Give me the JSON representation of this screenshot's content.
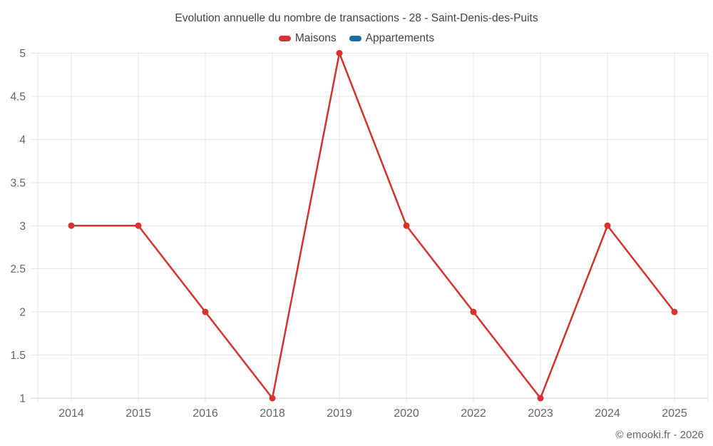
{
  "chart_data": {
    "type": "line",
    "title": "Evolution annuelle du nombre de transactions - 28 - Saint-Denis-des-Puits",
    "xlabel": "",
    "ylabel": "",
    "categories": [
      "2014",
      "2015",
      "2016",
      "2018",
      "2019",
      "2020",
      "2022",
      "2023",
      "2024",
      "2025"
    ],
    "series": [
      {
        "name": "Maisons",
        "color": "#d8312e",
        "values": [
          3,
          3,
          2,
          1,
          5,
          3,
          2,
          1,
          3,
          2
        ]
      },
      {
        "name": "Appartements",
        "color": "#1a6da0",
        "values": []
      }
    ],
    "ylim": [
      1,
      5
    ],
    "y_ticks": [
      5,
      4.5,
      4,
      3.5,
      3,
      2.5,
      2,
      1.5,
      1
    ],
    "grid": true,
    "legend_position": "top"
  },
  "colors": {
    "maisons": "#d8312e",
    "appartements": "#1a6da0",
    "grid": "#e6e6e6",
    "axis": "#cccccc",
    "axis_label": "#666666",
    "title_text": "#3f454b"
  },
  "footer": {
    "copyright": "© emooki.fr - 2026"
  }
}
